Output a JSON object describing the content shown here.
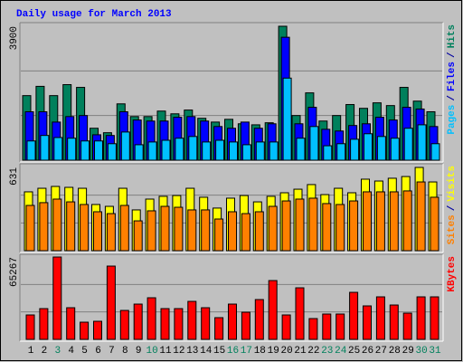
{
  "chart_data": [
    {
      "type": "bar",
      "title": "Daily usage for March 2013",
      "title_color": "#0000ff",
      "ylim": [
        0,
        3900
      ],
      "yticks": [
        3900
      ],
      "legend_separator": "/",
      "series": [
        {
          "name": "Hits",
          "color": "#00805c",
          "values": [
            1880,
            2150,
            1880,
            2200,
            2120,
            930,
            800,
            1640,
            1270,
            1270,
            1430,
            1350,
            1460,
            1220,
            1110,
            1190,
            1060,
            1030,
            1090,
            3900,
            1300,
            1960,
            1140,
            1300,
            1620,
            1510,
            1670,
            1590,
            2120,
            1720,
            1410
          ]
        },
        {
          "name": "Files",
          "color": "#0000ff",
          "values": [
            1410,
            1410,
            1110,
            1270,
            1300,
            740,
            720,
            1410,
            1170,
            1140,
            1140,
            1250,
            1270,
            1140,
            980,
            930,
            1110,
            930,
            1060,
            3580,
            1060,
            1540,
            900,
            850,
            1010,
            1060,
            1250,
            1170,
            1540,
            1490,
            980
          ]
        },
        {
          "name": "Pages",
          "color": "#00c0ff",
          "values": [
            560,
            720,
            660,
            640,
            560,
            560,
            480,
            820,
            450,
            530,
            580,
            640,
            690,
            530,
            580,
            530,
            450,
            530,
            530,
            2390,
            640,
            980,
            420,
            480,
            610,
            770,
            690,
            640,
            930,
            1030,
            480
          ]
        }
      ]
    },
    {
      "type": "bar",
      "ylim": [
        0,
        631
      ],
      "yticks": [
        631
      ],
      "legend_separator": "/",
      "series": [
        {
          "name": "Visits",
          "color": "#ffff00",
          "values": [
            446,
            473,
            487,
            480,
            473,
            350,
            336,
            473,
            309,
            391,
            412,
            418,
            473,
            405,
            323,
            398,
            418,
            370,
            412,
            439,
            466,
            501,
            425,
            473,
            439,
            542,
            528,
            549,
            562,
            631,
            521
          ]
        },
        {
          "name": "Sites",
          "color": "#ff8000",
          "values": [
            343,
            364,
            391,
            370,
            350,
            295,
            281,
            343,
            226,
            302,
            336,
            329,
            309,
            309,
            240,
            295,
            281,
            295,
            336,
            377,
            391,
            398,
            357,
            350,
            377,
            446,
            446,
            446,
            453,
            521,
            405
          ]
        }
      ]
    },
    {
      "type": "bar",
      "ylim": [
        0,
        65267
      ],
      "yticks": [
        65267
      ],
      "series": [
        {
          "name": "KBytes",
          "color": "#ff0000",
          "values": [
            19360,
            24380,
            65267,
            25090,
            13620,
            14340,
            58080,
            22940,
            27960,
            32980,
            24380,
            24380,
            30110,
            25090,
            17210,
            27960,
            21510,
            31550,
            46610,
            19360,
            40870,
            16490,
            20080,
            20080,
            37280,
            26530,
            33700,
            27240,
            20790,
            33700,
            33700
          ]
        }
      ],
      "categories": [
        "1",
        "2",
        "3",
        "4",
        "5",
        "6",
        "7",
        "8",
        "9",
        "10",
        "11",
        "12",
        "13",
        "14",
        "15",
        "16",
        "17",
        "18",
        "19",
        "20",
        "21",
        "22",
        "23",
        "24",
        "25",
        "26",
        "27",
        "28",
        "29",
        "30",
        "31"
      ],
      "category_colors": [
        "#000000",
        "#000000",
        "#00805c",
        "#000000",
        "#000000",
        "#000000",
        "#000000",
        "#000000",
        "#000000",
        "#00805c",
        "#000000",
        "#000000",
        "#000000",
        "#000000",
        "#000000",
        "#00805c",
        "#00805c",
        "#000000",
        "#000000",
        "#000000",
        "#000000",
        "#000000",
        "#00805c",
        "#00805c",
        "#000000",
        "#000000",
        "#000000",
        "#000000",
        "#000000",
        "#00805c",
        "#00805c"
      ]
    }
  ]
}
